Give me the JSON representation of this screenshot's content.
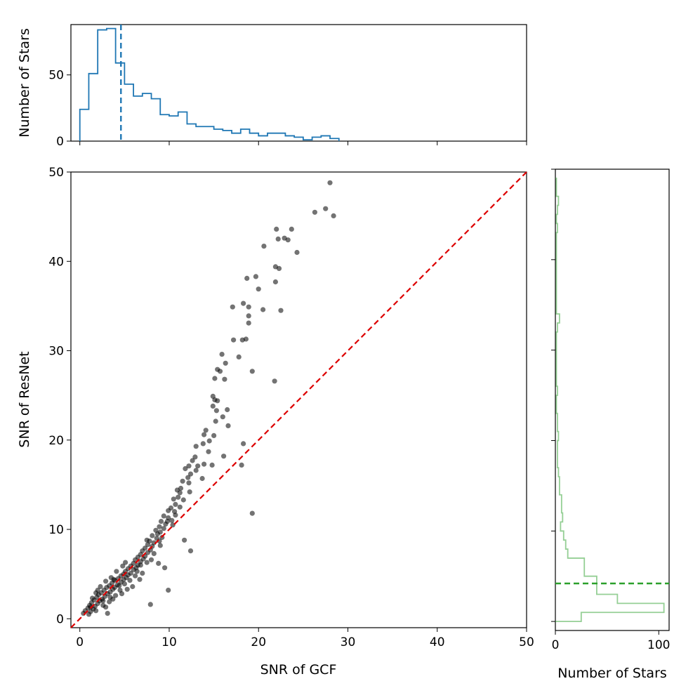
{
  "chart_data": [
    {
      "panel": "main-scatter",
      "type": "scatter",
      "xlabel": "SNR of GCF",
      "ylabel": "SNR of ResNet",
      "xlim": [
        -1,
        50
      ],
      "ylim": [
        -1,
        50
      ],
      "xticks": [
        0,
        10,
        20,
        30,
        40,
        50
      ],
      "yticks": [
        0,
        10,
        20,
        30,
        40,
        50
      ],
      "reference_line": {
        "from": [
          -1,
          -1
        ],
        "to": [
          50,
          50
        ],
        "style": "dashed",
        "color": "#dd0000"
      },
      "point_color": "#000000",
      "point_alpha": 0.55,
      "points": [
        [
          28.0,
          48.8
        ],
        [
          27.5,
          45.9
        ],
        [
          26.3,
          45.5
        ],
        [
          28.4,
          45.1
        ],
        [
          22.0,
          43.6
        ],
        [
          23.7,
          43.6
        ],
        [
          22.2,
          42.5
        ],
        [
          22.9,
          42.6
        ],
        [
          23.3,
          42.4
        ],
        [
          20.6,
          41.7
        ],
        [
          24.3,
          41.0
        ],
        [
          21.9,
          39.4
        ],
        [
          22.3,
          39.2
        ],
        [
          18.7,
          38.1
        ],
        [
          19.7,
          38.3
        ],
        [
          21.9,
          37.7
        ],
        [
          20.0,
          36.9
        ],
        [
          17.1,
          34.9
        ],
        [
          18.3,
          35.3
        ],
        [
          18.9,
          34.9
        ],
        [
          20.5,
          34.6
        ],
        [
          22.5,
          34.5
        ],
        [
          18.9,
          33.9
        ],
        [
          18.9,
          33.1
        ],
        [
          18.2,
          31.2
        ],
        [
          17.2,
          31.2
        ],
        [
          18.6,
          31.3
        ],
        [
          15.9,
          29.6
        ],
        [
          17.8,
          29.3
        ],
        [
          16.3,
          28.6
        ],
        [
          15.4,
          27.9
        ],
        [
          15.7,
          27.7
        ],
        [
          19.3,
          27.7
        ],
        [
          15.1,
          26.9
        ],
        [
          16.2,
          26.8
        ],
        [
          21.8,
          26.6
        ],
        [
          14.9,
          24.9
        ],
        [
          15.1,
          24.5
        ],
        [
          15.4,
          24.4
        ],
        [
          14.9,
          23.8
        ],
        [
          15.3,
          23.3
        ],
        [
          16.5,
          23.4
        ],
        [
          16.0,
          22.6
        ],
        [
          15.2,
          22.1
        ],
        [
          16.6,
          21.6
        ],
        [
          14.1,
          21.1
        ],
        [
          13.9,
          20.6
        ],
        [
          15.0,
          20.5
        ],
        [
          14.5,
          19.9
        ],
        [
          13.8,
          19.6
        ],
        [
          18.3,
          19.6
        ],
        [
          13.0,
          19.3
        ],
        [
          14.4,
          18.7
        ],
        [
          12.9,
          18.1
        ],
        [
          16.1,
          18.2
        ],
        [
          12.6,
          17.7
        ],
        [
          13.9,
          17.3
        ],
        [
          12.2,
          17.1
        ],
        [
          13.2,
          17.1
        ],
        [
          14.8,
          17.2
        ],
        [
          18.1,
          17.2
        ],
        [
          11.8,
          16.8
        ],
        [
          12.4,
          16.2
        ],
        [
          13.0,
          16.6
        ],
        [
          12.1,
          15.8
        ],
        [
          13.7,
          15.7
        ],
        [
          11.5,
          15.4
        ],
        [
          12.2,
          15.2
        ],
        [
          11.3,
          14.6
        ],
        [
          10.9,
          14.4
        ],
        [
          11.2,
          14.1
        ],
        [
          12.3,
          14.2
        ],
        [
          11.0,
          13.6
        ],
        [
          10.5,
          13.4
        ],
        [
          11.6,
          13.3
        ],
        [
          10.7,
          12.8
        ],
        [
          10.2,
          12.4
        ],
        [
          11.2,
          12.5
        ],
        [
          9.9,
          12.1
        ],
        [
          10.6,
          12.0
        ],
        [
          19.3,
          11.8
        ],
        [
          9.4,
          11.5
        ],
        [
          9.9,
          11.3
        ],
        [
          10.3,
          11.0
        ],
        [
          9.1,
          10.9
        ],
        [
          9.6,
          10.6
        ],
        [
          8.9,
          10.3
        ],
        [
          9.4,
          10.1
        ],
        [
          8.5,
          9.9
        ],
        [
          9.0,
          9.7
        ],
        [
          8.7,
          9.5
        ],
        [
          8.1,
          9.3
        ],
        [
          8.6,
          9.0
        ],
        [
          9.2,
          9.1
        ],
        [
          11.7,
          8.8
        ],
        [
          7.8,
          8.7
        ],
        [
          8.3,
          8.5
        ],
        [
          7.6,
          8.3
        ],
        [
          8.1,
          8.1
        ],
        [
          7.3,
          7.9
        ],
        [
          7.9,
          7.7
        ],
        [
          12.4,
          7.6
        ],
        [
          7.0,
          7.6
        ],
        [
          7.6,
          7.4
        ],
        [
          6.8,
          7.2
        ],
        [
          7.3,
          7.0
        ],
        [
          6.5,
          6.9
        ],
        [
          7.1,
          6.7
        ],
        [
          6.2,
          6.6
        ],
        [
          6.8,
          6.4
        ],
        [
          8.8,
          6.2
        ],
        [
          6.0,
          6.2
        ],
        [
          6.5,
          6.0
        ],
        [
          5.7,
          5.9
        ],
        [
          6.3,
          5.7
        ],
        [
          9.5,
          5.7
        ],
        [
          5.4,
          5.6
        ],
        [
          6.0,
          5.5
        ],
        [
          5.1,
          5.3
        ],
        [
          5.7,
          5.1
        ],
        [
          6.4,
          5.3
        ],
        [
          4.9,
          5.0
        ],
        [
          5.4,
          4.9
        ],
        [
          4.6,
          4.8
        ],
        [
          5.2,
          4.6
        ],
        [
          4.3,
          4.5
        ],
        [
          4.9,
          4.4
        ],
        [
          3.9,
          4.3
        ],
        [
          4.6,
          4.1
        ],
        [
          3.6,
          4.0
        ],
        [
          4.2,
          3.8
        ],
        [
          3.3,
          3.7
        ],
        [
          3.9,
          3.5
        ],
        [
          3.0,
          3.5
        ],
        [
          3.7,
          3.3
        ],
        [
          2.7,
          3.2
        ],
        [
          3.4,
          3.0
        ],
        [
          2.4,
          2.9
        ],
        [
          3.1,
          2.8
        ],
        [
          2.1,
          2.7
        ],
        [
          2.8,
          2.5
        ],
        [
          1.9,
          2.4
        ],
        [
          2.5,
          2.2
        ],
        [
          1.6,
          2.1
        ],
        [
          2.2,
          2.0
        ],
        [
          1.3,
          1.8
        ],
        [
          2.0,
          1.7
        ],
        [
          1.1,
          1.5
        ],
        [
          1.7,
          1.4
        ],
        [
          0.9,
          1.2
        ],
        [
          1.5,
          1.1
        ],
        [
          0.6,
          0.9
        ],
        [
          1.2,
          0.8
        ],
        [
          0.4,
          0.6
        ],
        [
          1.0,
          0.5
        ],
        [
          2.9,
          4.2
        ],
        [
          3.8,
          4.4
        ],
        [
          4.4,
          3.7
        ],
        [
          2.3,
          3.6
        ],
        [
          1.8,
          2.9
        ],
        [
          2.6,
          1.5
        ],
        [
          3.3,
          1.9
        ],
        [
          5.0,
          3.9
        ],
        [
          4.0,
          2.6
        ],
        [
          5.6,
          4.3
        ],
        [
          6.2,
          4.8
        ],
        [
          7.0,
          5.1
        ],
        [
          7.5,
          6.3
        ],
        [
          8.0,
          6.6
        ],
        [
          8.3,
          7.3
        ],
        [
          9.0,
          8.2
        ],
        [
          6.8,
          6.0
        ],
        [
          4.8,
          5.9
        ],
        [
          3.5,
          4.6
        ],
        [
          2.0,
          3.2
        ],
        [
          1.4,
          2.3
        ],
        [
          2.9,
          1.3
        ],
        [
          3.1,
          0.6
        ],
        [
          1.8,
          0.9
        ],
        [
          4.7,
          2.8
        ],
        [
          5.3,
          3.3
        ],
        [
          10.7,
          11.6
        ],
        [
          9.8,
          10.9
        ],
        [
          10.4,
          10.5
        ],
        [
          7.5,
          8.8
        ],
        [
          8.9,
          8.7
        ],
        [
          5.1,
          6.3
        ],
        [
          4.1,
          5.3
        ],
        [
          3.4,
          2.4
        ],
        [
          2.6,
          2.0
        ],
        [
          1.2,
          1.3
        ],
        [
          9.9,
          3.2
        ],
        [
          7.9,
          1.6
        ],
        [
          6.7,
          4.4
        ],
        [
          5.9,
          3.6
        ],
        [
          4.5,
          3.2
        ],
        [
          3.7,
          2.2
        ]
      ]
    },
    {
      "panel": "top-histogram",
      "type": "step-histogram",
      "ylabel": "Number of Stars",
      "xlim": [
        -1,
        50
      ],
      "ylim": [
        0,
        88
      ],
      "yticks": [
        0,
        50
      ],
      "xticks": [
        0,
        10,
        20,
        30,
        40,
        50
      ],
      "color": "#1f77b4",
      "bin_edges": [
        0,
        1,
        2,
        3,
        4,
        5,
        6,
        7,
        8,
        9,
        10,
        11,
        12,
        13,
        14,
        15,
        16,
        17,
        18,
        19,
        20,
        21,
        22,
        23,
        24,
        25,
        26,
        27,
        28,
        29
      ],
      "counts": [
        24,
        51,
        84,
        85,
        59,
        43,
        34,
        36,
        32,
        20,
        19,
        22,
        13,
        11,
        11,
        9,
        8,
        6,
        9,
        6,
        4,
        6,
        6,
        4,
        3,
        1,
        3,
        4,
        2
      ],
      "median_line": 4.6
    },
    {
      "panel": "right-histogram",
      "type": "horizontal-step-histogram",
      "xlabel": "Number of Stars",
      "xlim": [
        0,
        110
      ],
      "ylim": [
        -1,
        50
      ],
      "xticks": [
        0,
        100
      ],
      "color": "#2ca02c",
      "color_alpha": 0.5,
      "bin_edges": [
        0,
        1,
        2,
        3,
        4,
        5,
        6,
        7,
        8,
        9,
        10,
        11,
        12,
        13,
        14,
        15,
        16,
        17,
        18,
        19,
        20,
        21,
        22,
        23,
        24,
        25,
        26,
        27,
        28,
        29,
        30,
        31,
        32,
        33,
        34,
        35,
        36,
        37,
        38,
        39,
        40,
        41,
        42,
        43,
        44,
        45,
        46,
        47,
        48,
        49
      ],
      "counts": [
        25,
        105,
        60,
        40,
        40,
        28,
        28,
        12,
        10,
        8,
        5,
        7,
        6,
        6,
        4,
        4,
        3,
        2,
        2,
        2,
        3,
        2,
        2,
        1,
        1,
        2,
        1,
        1,
        1,
        1,
        1,
        1,
        2,
        4,
        1,
        1,
        1,
        1,
        1,
        1,
        1,
        1,
        1,
        2,
        1,
        2,
        3,
        1,
        1
      ],
      "median_line": 4.2
    }
  ]
}
